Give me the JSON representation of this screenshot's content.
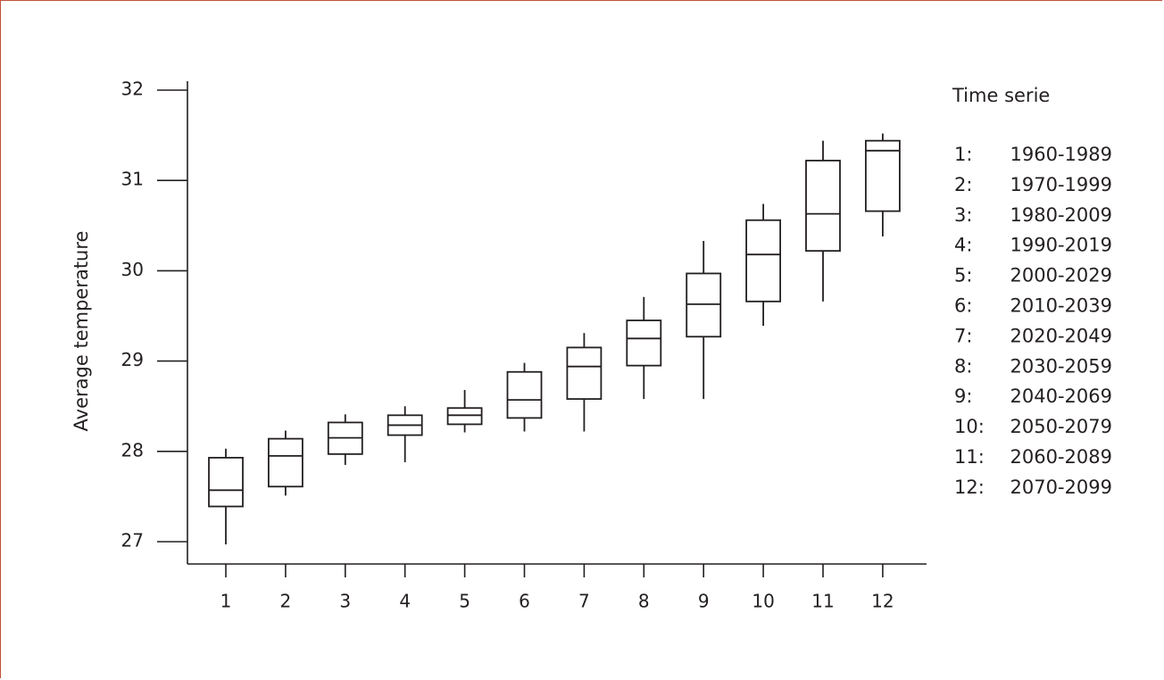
{
  "chart_data": {
    "type": "boxplot",
    "ylabel": "Average temperature",
    "xlabel": "",
    "ylim": [
      26.74,
      32
    ],
    "yticks": [
      27,
      28,
      29,
      30,
      31,
      32
    ],
    "categories": [
      "1",
      "2",
      "3",
      "4",
      "5",
      "6",
      "7",
      "8",
      "9",
      "10",
      "11",
      "12"
    ],
    "boxes": [
      {
        "x": "1",
        "min": 26.97,
        "q1": 27.39,
        "median": 27.57,
        "q3": 27.93,
        "max": 28.03
      },
      {
        "x": "2",
        "min": 27.51,
        "q1": 27.61,
        "median": 27.95,
        "q3": 28.14,
        "max": 28.23
      },
      {
        "x": "3",
        "min": 27.85,
        "q1": 27.97,
        "median": 28.15,
        "q3": 28.32,
        "max": 28.41
      },
      {
        "x": "4",
        "min": 27.88,
        "q1": 28.18,
        "median": 28.29,
        "q3": 28.4,
        "max": 28.5
      },
      {
        "x": "5",
        "min": 28.21,
        "q1": 28.3,
        "median": 28.4,
        "q3": 28.48,
        "max": 28.68
      },
      {
        "x": "6",
        "min": 28.22,
        "q1": 28.37,
        "median": 28.57,
        "q3": 28.88,
        "max": 28.98
      },
      {
        "x": "7",
        "min": 28.22,
        "q1": 28.58,
        "median": 28.94,
        "q3": 29.15,
        "max": 29.31
      },
      {
        "x": "8",
        "min": 28.58,
        "q1": 28.95,
        "median": 29.25,
        "q3": 29.45,
        "max": 29.71
      },
      {
        "x": "9",
        "min": 28.58,
        "q1": 29.27,
        "median": 29.63,
        "q3": 29.97,
        "max": 30.33
      },
      {
        "x": "10",
        "min": 29.39,
        "q1": 29.66,
        "median": 30.18,
        "q3": 30.56,
        "max": 30.74
      },
      {
        "x": "11",
        "min": 29.66,
        "q1": 30.22,
        "median": 30.63,
        "q3": 31.22,
        "max": 31.44
      },
      {
        "x": "12",
        "min": 30.38,
        "q1": 30.66,
        "median": 31.33,
        "q3": 31.44,
        "max": 31.52
      }
    ],
    "legend": {
      "title": "Time serie",
      "entries": [
        {
          "key": "1:",
          "label": "1960-1989"
        },
        {
          "key": "2:",
          "label": "1970-1999"
        },
        {
          "key": "3:",
          "label": "1980-2009"
        },
        {
          "key": "4:",
          "label": "1990-2019"
        },
        {
          "key": "5:",
          "label": "2000-2029"
        },
        {
          "key": "6:",
          "label": "2010-2039"
        },
        {
          "key": "7:",
          "label": "2020-2049"
        },
        {
          "key": "8:",
          "label": "2030-2059"
        },
        {
          "key": "9:",
          "label": "2040-2069"
        },
        {
          "key": "10:",
          "label": "2050-2079"
        },
        {
          "key": "11:",
          "label": "2060-2089"
        },
        {
          "key": "12:",
          "label": "2070-2099"
        }
      ],
      "placement": "right"
    },
    "grid": false,
    "stroke_color": "#231f20",
    "frame_color": "#c0503a"
  }
}
